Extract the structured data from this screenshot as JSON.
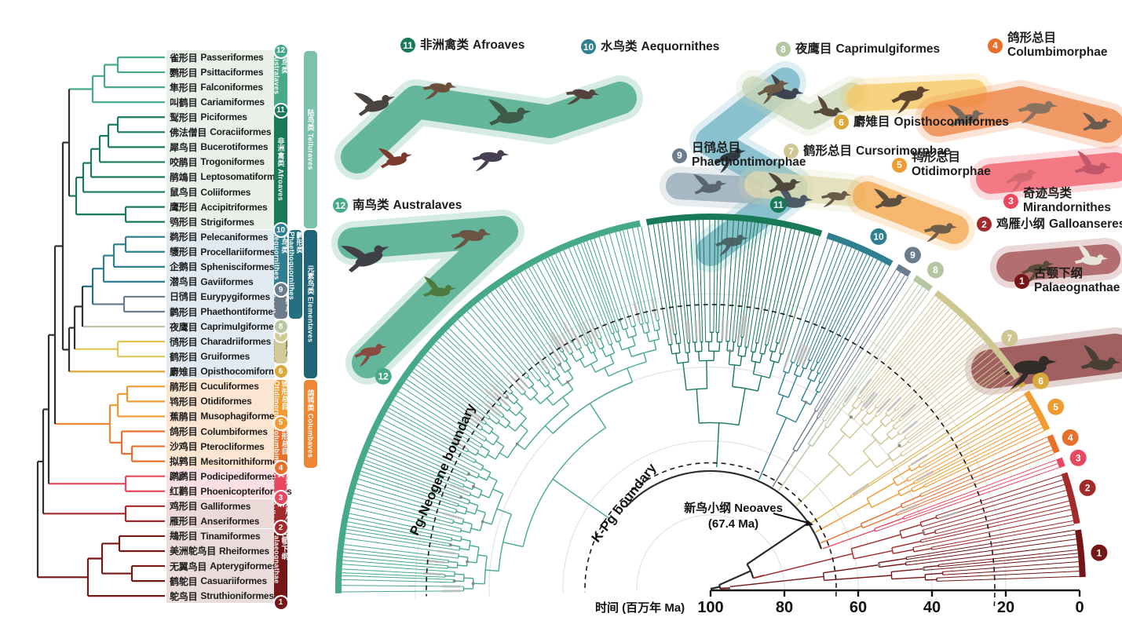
{
  "figure": {
    "axis": {
      "title": "时间 (百万年 Ma)",
      "ticks": [
        "100",
        "80",
        "60",
        "40",
        "20",
        "0"
      ]
    },
    "boundaries": {
      "pg_neogene": "Pg-Neogene boundary",
      "k_pg": "K-Pg boundary"
    },
    "neoaves": {
      "line1": "新鸟小纲 Neoaves",
      "line2": "(67.4 Ma)"
    }
  },
  "clade_labels": [
    {
      "num": "12",
      "zh": "南鸟类",
      "latin": "Australaves",
      "color": "#45a98a"
    },
    {
      "num": "11",
      "zh": "非洲禽类",
      "latin": "Afroaves",
      "color": "#187a57"
    },
    {
      "num": "10",
      "zh": "水鸟类",
      "latin": "Aequornithes",
      "color": "#2f7f90"
    },
    {
      "num": "9",
      "zh": "日鸻总目",
      "latin": "Phaethontimorphae",
      "color": "#6b7d8c"
    },
    {
      "num": "8",
      "zh": "夜鹰目",
      "latin": "Caprimulgiformes",
      "color": "#b5c6a3"
    },
    {
      "num": "7",
      "zh": "鹤形总目",
      "latin": "Cursorimorphae",
      "color": "#cfc692"
    },
    {
      "num": "6",
      "zh": "麝雉目",
      "latin": "Opisthocomiformes",
      "color": "#d9a93c"
    },
    {
      "num": "5",
      "zh": "鸨形总目",
      "latin": "Otidimorphae",
      "color": "#f09a30"
    },
    {
      "num": "4",
      "zh": "鸽形总目",
      "latin": "Columbimorphae",
      "color": "#e8702a"
    },
    {
      "num": "3",
      "zh": "奇迹鸟类",
      "latin": "Mirandornithes",
      "color": "#e8485e"
    },
    {
      "num": "2",
      "zh": "鸡雁小纲",
      "latin": "Galloanseres",
      "color": "#a32a2a"
    },
    {
      "num": "1",
      "zh": "古颚下纲",
      "latin": "Palaeognathae",
      "color": "#761717"
    }
  ],
  "tips": [
    {
      "zh": "雀形目",
      "latin": "Passeriformes"
    },
    {
      "zh": "鹦形目",
      "latin": "Psittaciformes"
    },
    {
      "zh": "隼形目",
      "latin": "Falconiformes"
    },
    {
      "zh": "叫鹤目",
      "latin": "Cariamiformes"
    },
    {
      "zh": "䴕形目",
      "latin": "Piciformes"
    },
    {
      "zh": "佛法僧目",
      "latin": "Coraciiformes"
    },
    {
      "zh": "犀鸟目",
      "latin": "Bucerotiformes"
    },
    {
      "zh": "咬鹃目",
      "latin": "Trogoniformes"
    },
    {
      "zh": "鹃鴗目",
      "latin": "Leptosomatiformes"
    },
    {
      "zh": "鼠鸟目",
      "latin": "Coliiformes"
    },
    {
      "zh": "鹰形目",
      "latin": "Accipitriformes"
    },
    {
      "zh": "鸮形目",
      "latin": "Strigiformes"
    },
    {
      "zh": "鹈形目",
      "latin": "Pelecaniformes"
    },
    {
      "zh": "鹱形目",
      "latin": "Procellariiformes"
    },
    {
      "zh": "企鹅目",
      "latin": "Sphenisciformes"
    },
    {
      "zh": "潜鸟目",
      "latin": "Gaviiformes"
    },
    {
      "zh": "日鸻目",
      "latin": "Eurypygiformes"
    },
    {
      "zh": "鹲形目",
      "latin": "Phaethontiformes"
    },
    {
      "zh": "夜鹰目",
      "latin": "Caprimulgiformes"
    },
    {
      "zh": "鸻形目",
      "latin": "Charadriiformes"
    },
    {
      "zh": "鹤形目",
      "latin": "Gruiformes"
    },
    {
      "zh": "麝雉目",
      "latin": "Opisthocomiformes"
    },
    {
      "zh": "鹃形目",
      "latin": "Cuculiformes"
    },
    {
      "zh": "鸨形目",
      "latin": "Otidiformes"
    },
    {
      "zh": "蕉鹃目",
      "latin": "Musophagiformes"
    },
    {
      "zh": "鸽形目",
      "latin": "Columbiformes"
    },
    {
      "zh": "沙鸡目",
      "latin": "Pterocliformes"
    },
    {
      "zh": "拟鹑目",
      "latin": "Mesitornithiformes"
    },
    {
      "zh": "䴙䴘目",
      "latin": "Podicipediformes"
    },
    {
      "zh": "红鹳目",
      "latin": "Phoenicopteriformes"
    },
    {
      "zh": "鸡形目",
      "latin": "Galliformes"
    },
    {
      "zh": "雁形目",
      "latin": "Anseriformes"
    },
    {
      "zh": "䳍形目",
      "latin": "Tinamiformes"
    },
    {
      "zh": "美洲鸵鸟目",
      "latin": "Rheiformes"
    },
    {
      "zh": "无翼鸟目",
      "latin": "Apterygiformes"
    },
    {
      "zh": "鹤鸵目",
      "latin": "Casuariiformes"
    },
    {
      "zh": "鸵鸟目",
      "latin": "Struthioniformes"
    }
  ],
  "blocks": [
    {
      "from": 0,
      "to": 11,
      "color": "#e9efe9"
    },
    {
      "from": 12,
      "to": 21,
      "color": "#e0eaf0"
    },
    {
      "from": 22,
      "to": 27,
      "color": "#fce6d2"
    },
    {
      "from": 28,
      "to": 29,
      "color": "#fadfe3"
    },
    {
      "from": 30,
      "to": 31,
      "color": "#ebdad8"
    },
    {
      "from": 32,
      "to": 36,
      "color": "#e9dcda"
    }
  ],
  "bars": [
    {
      "label": "南鸟类 Australaves",
      "col": 1,
      "from": 0,
      "to": 3,
      "color": "#45a98a",
      "badge": "12",
      "badgeAt": "top"
    },
    {
      "label": "非洲禽类 Afroaves",
      "col": 1,
      "from": 4,
      "to": 11,
      "color": "#187a57",
      "badge": "11",
      "badgeAt": "top"
    },
    {
      "label": "水鸟类 Aequornithes",
      "col": 1,
      "from": 12,
      "to": 15,
      "color": "#2f7f90",
      "badge": "10",
      "badgeAt": "top"
    },
    {
      "label": "日鸻总目 Phaethontim.",
      "col": 1,
      "from": 16,
      "to": 17,
      "color": "#6b7d8c",
      "badge": "9",
      "badgeAt": "top"
    },
    {
      "label": "鹤形总目 Cursorim.",
      "col": 1,
      "from": 19,
      "to": 20,
      "color": "#d3cb97",
      "badge": "7",
      "badgeAt": "top",
      "text": "#6e6535"
    },
    {
      "label": "鸨形总目 Otidimorphae",
      "col": 1,
      "from": 22,
      "to": 24,
      "color": "#f09a30",
      "badge": "5",
      "badgeAt": "bottom"
    },
    {
      "label": "鸽形总目 Columbimorphae",
      "col": 1,
      "from": 25,
      "to": 27,
      "color": "#e8702a",
      "badge": "4",
      "badgeAt": "bottom"
    },
    {
      "label": "奇迹鸟类 Mirandornithes",
      "col": 1,
      "from": 28,
      "to": 29,
      "color": "#e8485e",
      "badge": "3",
      "badgeAt": "bottom"
    },
    {
      "label": "鸡雁小纲 Galloanseres",
      "col": 1,
      "from": 30,
      "to": 31,
      "color": "#a32a2a",
      "badge": "2",
      "badgeAt": "bottom"
    },
    {
      "label": "古颚下纲 Palaeognathae",
      "col": 1,
      "from": 32,
      "to": 36,
      "color": "#761717",
      "badge": "1",
      "badgeAt": "bottom"
    },
    {
      "label": "鹲形类 Phaethoquornithes",
      "col": 2,
      "from": 12,
      "to": 17,
      "color": "#24707f"
    },
    {
      "label": "陆鸟类 Telluraves",
      "col": 3,
      "from": 0,
      "to": 11,
      "color": "#7cc2a8"
    },
    {
      "label": "元素鸟类 Elementaves",
      "col": 3,
      "from": 12,
      "to": 21,
      "color": "#1f6577"
    },
    {
      "label": "鸽鸨类 Columbaves",
      "col": 3,
      "from": 22,
      "to": 27,
      "color": "#ee8633"
    }
  ],
  "badge_marks": [
    {
      "num": "8",
      "row": 18,
      "color": "#b5c6a3"
    },
    {
      "num": "6",
      "row": 21,
      "color": "#d9a93c"
    }
  ]
}
